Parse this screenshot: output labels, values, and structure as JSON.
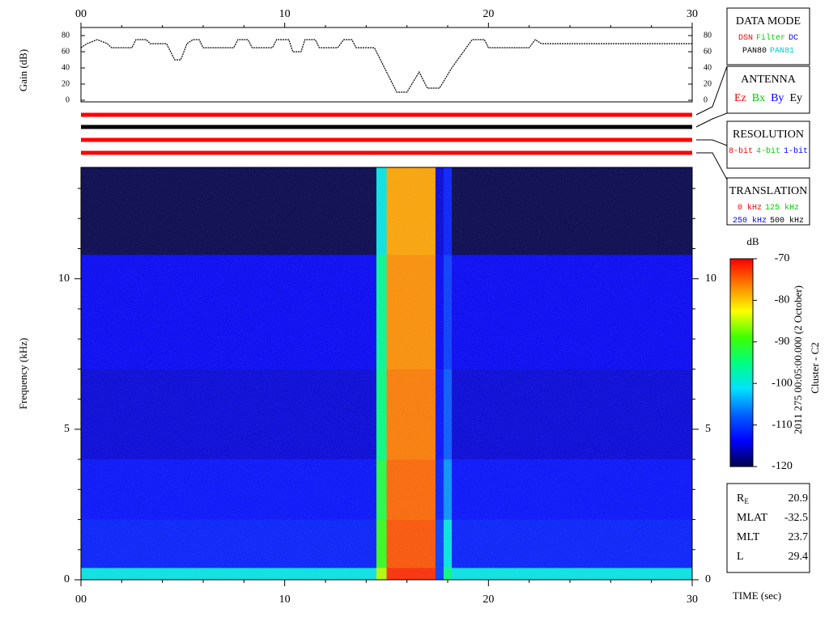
{
  "chart_data": [
    {
      "type": "line",
      "ylabel": "Gain (dB)",
      "color": "#000000",
      "x": [
        0,
        0.3,
        0.8,
        1.3,
        1.5,
        2.5,
        2.7,
        3.2,
        3.4,
        4.2,
        4.6,
        4.9,
        5.2,
        5.5,
        5.8,
        6.0,
        7.5,
        7.7,
        8.2,
        8.4,
        9.4,
        9.6,
        10.2,
        10.4,
        10.8,
        11.0,
        11.5,
        11.7,
        12.6,
        12.9,
        13.3,
        13.5,
        14.4,
        15.5,
        16.0,
        16.6,
        17.0,
        17.6,
        18.2,
        19.2,
        19.8,
        20.0,
        22.0,
        22.3,
        22.6,
        30
      ],
      "values": [
        65,
        70,
        75,
        70,
        65,
        65,
        75,
        75,
        70,
        70,
        50,
        50,
        70,
        75,
        75,
        65,
        65,
        75,
        75,
        65,
        65,
        75,
        75,
        60,
        60,
        75,
        75,
        65,
        65,
        75,
        75,
        65,
        65,
        10,
        10,
        35,
        15,
        15,
        40,
        75,
        75,
        65,
        65,
        75,
        70,
        70
      ],
      "xlim": [
        0,
        30
      ],
      "xticks": [
        {
          "value": 0,
          "label": "00"
        },
        10,
        20,
        30
      ],
      "x_minor_ticks": [
        2,
        4,
        6,
        8,
        12,
        14,
        16,
        18,
        22,
        24,
        26,
        28
      ],
      "ylim": [
        -2,
        90
      ],
      "yticks": [
        0,
        20,
        40,
        60,
        80
      ]
    },
    {
      "type": "heatmap",
      "ylabel": "Frequency (kHz)",
      "xlabel": "TIME (sec)",
      "xbins": [
        0,
        14.5,
        15,
        17.4,
        17.8,
        18.2,
        30
      ],
      "ybins": [
        0,
        0.4,
        2,
        4,
        7,
        10.8,
        13.7
      ],
      "values": [
        [
          -100,
          -85,
          -72,
          -110,
          -95,
          -100
        ],
        [
          -112,
          -90,
          -74,
          -110,
          -100,
          -112
        ],
        [
          -113,
          -92,
          -75,
          -112,
          -105,
          -113
        ],
        [
          -115,
          -95,
          -76,
          -113,
          -108,
          -115
        ],
        [
          -114,
          -96,
          -77,
          -114,
          -110,
          -114
        ],
        [
          -120,
          -100,
          -78,
          -115,
          -112,
          -120
        ]
      ],
      "xlim": [
        0,
        30
      ],
      "xticks": [
        {
          "value": 0,
          "label": "00"
        },
        10,
        20,
        30
      ],
      "x_minor_ticks": [
        2,
        4,
        6,
        8,
        12,
        14,
        16,
        18,
        22,
        24,
        26,
        28
      ],
      "ylim": [
        0,
        13.7
      ],
      "yticks": [
        0,
        5,
        10
      ],
      "y_minor_ticks": [
        1,
        2,
        3,
        4,
        6,
        7,
        8,
        9,
        11,
        12,
        13
      ],
      "colorbar": {
        "label": "dB",
        "lim": [
          -120,
          -70
        ],
        "ticks": [
          -70,
          -80,
          -90,
          -100,
          -110,
          -120
        ],
        "colors": [
          "#00004a",
          "#0000ff",
          "#0060ff",
          "#00e0ff",
          "#00ff80",
          "#40ff00",
          "#ffff00",
          "#ff8000",
          "#ff0000"
        ]
      }
    }
  ],
  "status_lines": [
    "#ff0000",
    "#000000",
    "#ff0000",
    "#ff0000"
  ],
  "panels": [
    {
      "title": "DATA MODE",
      "rows": [
        [
          {
            "text": "DSN",
            "color": "#ff0000"
          },
          {
            "text": "Filter",
            "color": "#00cc00"
          },
          {
            "text": "DC",
            "color": "#0000ff"
          }
        ],
        [
          {
            "text": "PAN80",
            "color": "#000000"
          },
          {
            "text": "PAN81",
            "color": "#00cccc"
          }
        ]
      ]
    },
    {
      "title": "ANTENNA",
      "rows": [
        [
          {
            "text": "Ez",
            "color": "#ff0000"
          },
          {
            "text": "Bx",
            "color": "#00cc00"
          },
          {
            "text": "By",
            "color": "#0000ff"
          },
          {
            "text": "Ey",
            "color": "#000000"
          }
        ]
      ]
    },
    {
      "title": "RESOLUTION",
      "rows": [
        [
          {
            "text": "8-bit",
            "color": "#ff0000"
          },
          {
            "text": "4-bit",
            "color": "#00cc00"
          },
          {
            "text": "1-bit",
            "color": "#0000ff"
          }
        ]
      ]
    },
    {
      "title": "TRANSLATION",
      "rows": [
        [
          {
            "text": "0 kHz",
            "color": "#ff0000"
          },
          {
            "text": "125 kHz",
            "color": "#00cc00"
          }
        ],
        [
          {
            "text": "250 kHz",
            "color": "#0000ff"
          },
          {
            "text": "500 kHz",
            "color": "#000000"
          }
        ]
      ]
    }
  ],
  "info": [
    {
      "label": "R",
      "sub": "E",
      "value": 20.9
    },
    {
      "label": "MLAT",
      "value": -32.5
    },
    {
      "label": "MLT",
      "value": 23.7
    },
    {
      "label": "L",
      "value": 29.4
    }
  ],
  "timestamp": "2011 275 00:05:00.000 (2 October)",
  "spacecraft": "Cluster - C2"
}
